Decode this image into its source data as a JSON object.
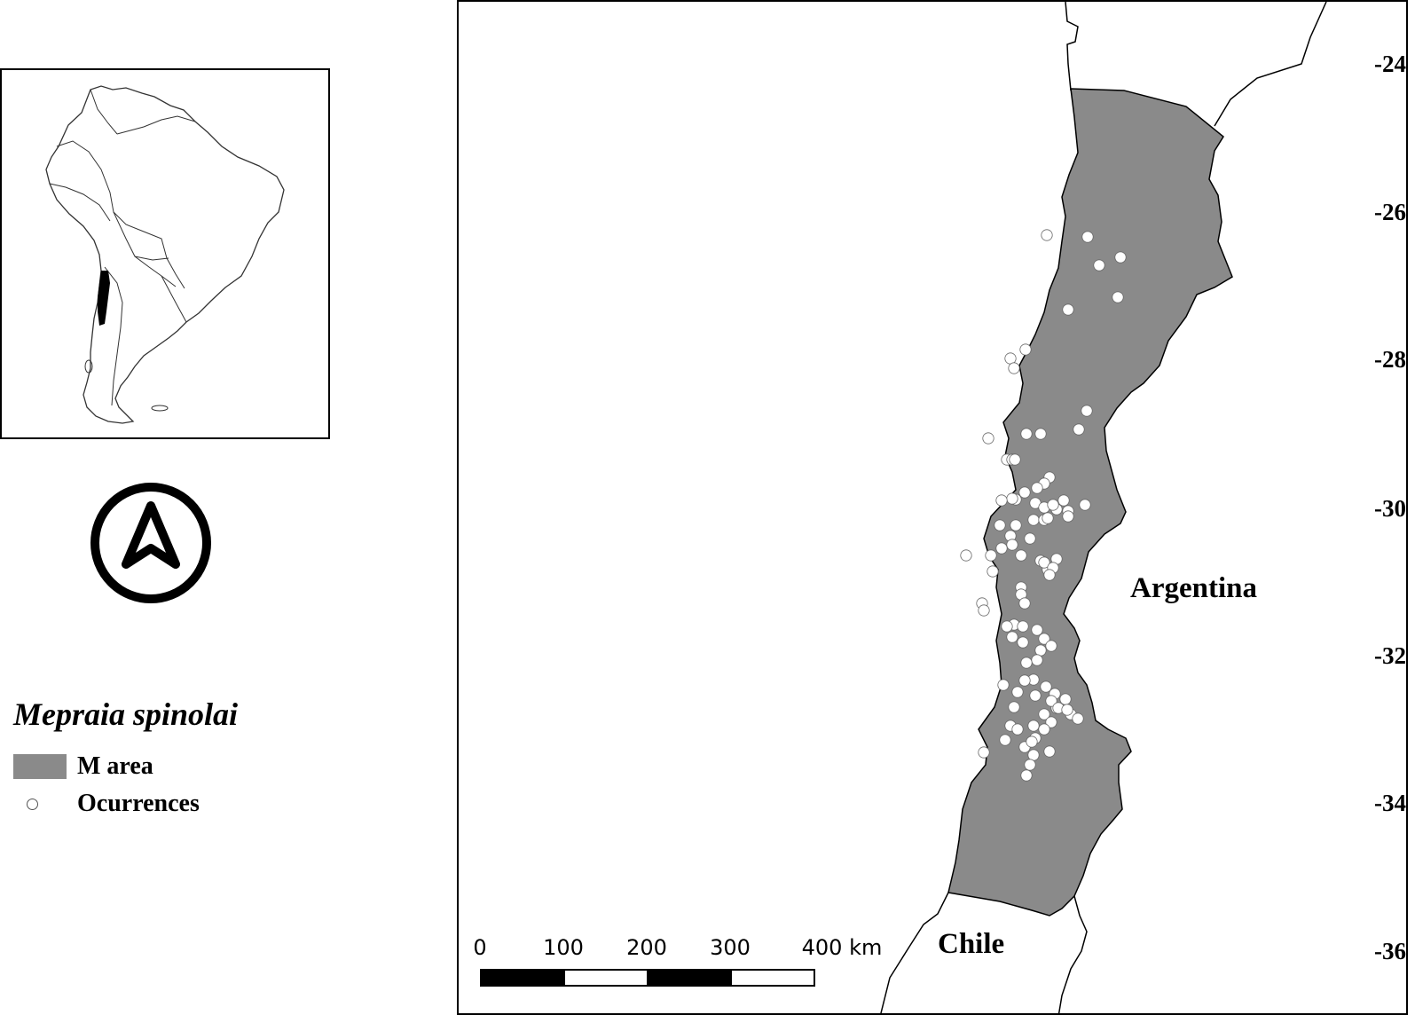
{
  "inset": {
    "label": "South America inset"
  },
  "north_arrow": {
    "icon": "north-arrow-icon"
  },
  "legend": {
    "title": "Mepraia spinolai",
    "items": [
      {
        "label": "M area",
        "icon": "area-swatch-icon",
        "color": "#8a8a8a"
      },
      {
        "label": "Ocurrences",
        "icon": "occurrence-dot-icon",
        "color": "#ffffff"
      }
    ]
  },
  "map": {
    "country_labels": {
      "argentina": "Argentina",
      "chile": "Chile"
    },
    "latitude_ticks": [
      "-24",
      "-26",
      "-28",
      "-30",
      "-32",
      "-34",
      "-36"
    ],
    "colors": {
      "m_area": "#8a8a8a",
      "occurrence_fill": "#ffffff",
      "occurrence_stroke": "#666666",
      "border": "#000000"
    }
  },
  "scalebar": {
    "labels": [
      "0",
      "100",
      "200",
      "300",
      "400 km"
    ],
    "colors": [
      "#000000",
      "#ffffff",
      "#000000",
      "#ffffff"
    ]
  }
}
